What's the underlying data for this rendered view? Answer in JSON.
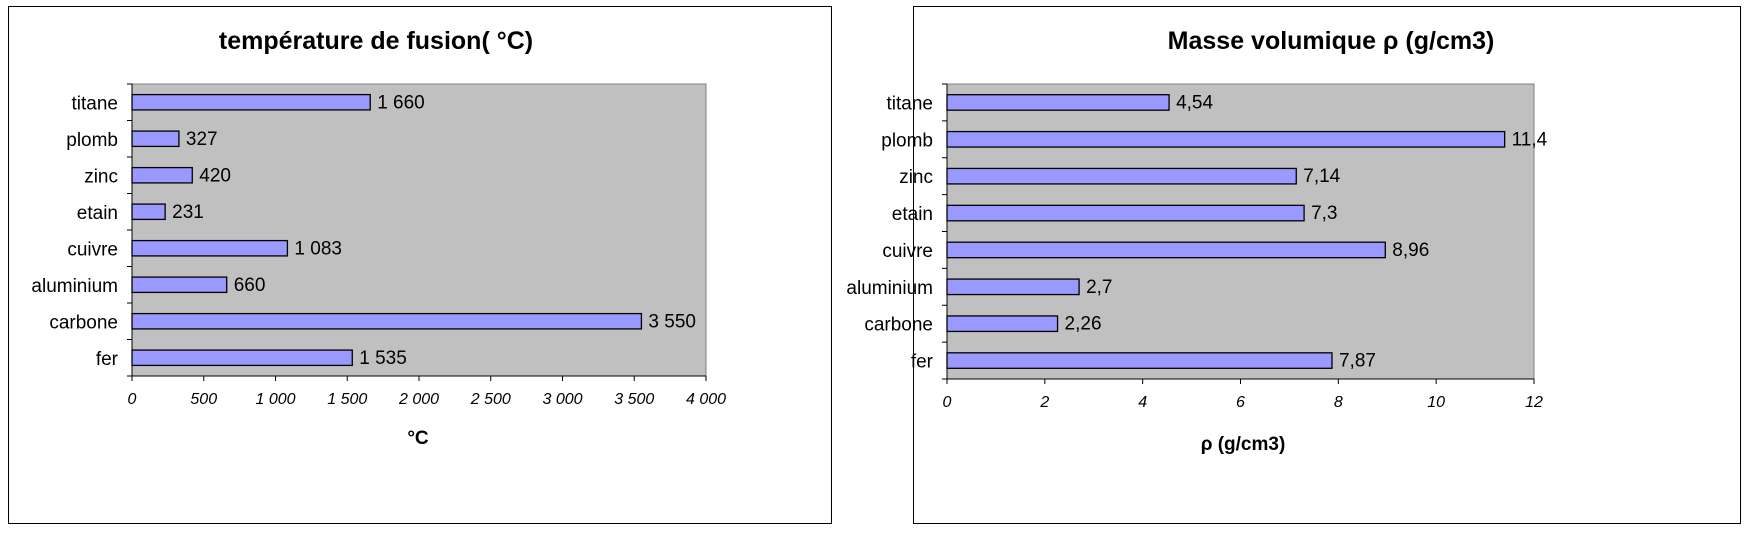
{
  "chart_data": [
    {
      "type": "bar",
      "orientation": "horizontal",
      "title": "température de fusion( °C)",
      "xlabel": "°C",
      "ylabel": "",
      "categories": [
        "titane",
        "plomb",
        "zinc",
        "etain",
        "cuivre",
        "aluminium",
        "carbone",
        "fer"
      ],
      "values": [
        1660,
        327,
        420,
        231,
        1083,
        660,
        3550,
        1535
      ],
      "data_labels": [
        "1 660",
        "327",
        "420",
        "231",
        "1 083",
        "660",
        "3 550",
        "1 535"
      ],
      "xlim": [
        0,
        4000
      ],
      "ticks": [
        0,
        500,
        1000,
        1500,
        2000,
        2500,
        3000,
        3500,
        4000
      ],
      "tick_labels": [
        "0",
        "500",
        "1 000",
        "1 500",
        "2 000",
        "2 500",
        "3 000",
        "3 500",
        "4 000"
      ],
      "grid": false,
      "colors": {
        "plot_bg": "#c0c0c0",
        "bar_fill": "#9999ff",
        "bar_stroke": "#000000"
      }
    },
    {
      "type": "bar",
      "orientation": "horizontal",
      "title": "Masse volumique ρ  (g/cm3)",
      "xlabel": "ρ  (g/cm3)",
      "ylabel": "",
      "categories": [
        "titane",
        "plomb",
        "zinc",
        "etain",
        "cuivre",
        "aluminium",
        "carbone",
        "fer"
      ],
      "values": [
        4.54,
        11.4,
        7.14,
        7.3,
        8.96,
        2.7,
        2.26,
        7.87
      ],
      "data_labels": [
        "4,54",
        "11,4",
        "7,14",
        "7,3",
        "8,96",
        "2,7",
        "2,26",
        "7,87"
      ],
      "xlim": [
        0,
        12
      ],
      "ticks": [
        0,
        2,
        4,
        6,
        8,
        10,
        12
      ],
      "tick_labels": [
        "0",
        "2",
        "4",
        "6",
        "8",
        "10",
        "12"
      ],
      "grid": false,
      "colors": {
        "plot_bg": "#c0c0c0",
        "bar_fill": "#9999ff",
        "bar_stroke": "#000000"
      }
    }
  ]
}
